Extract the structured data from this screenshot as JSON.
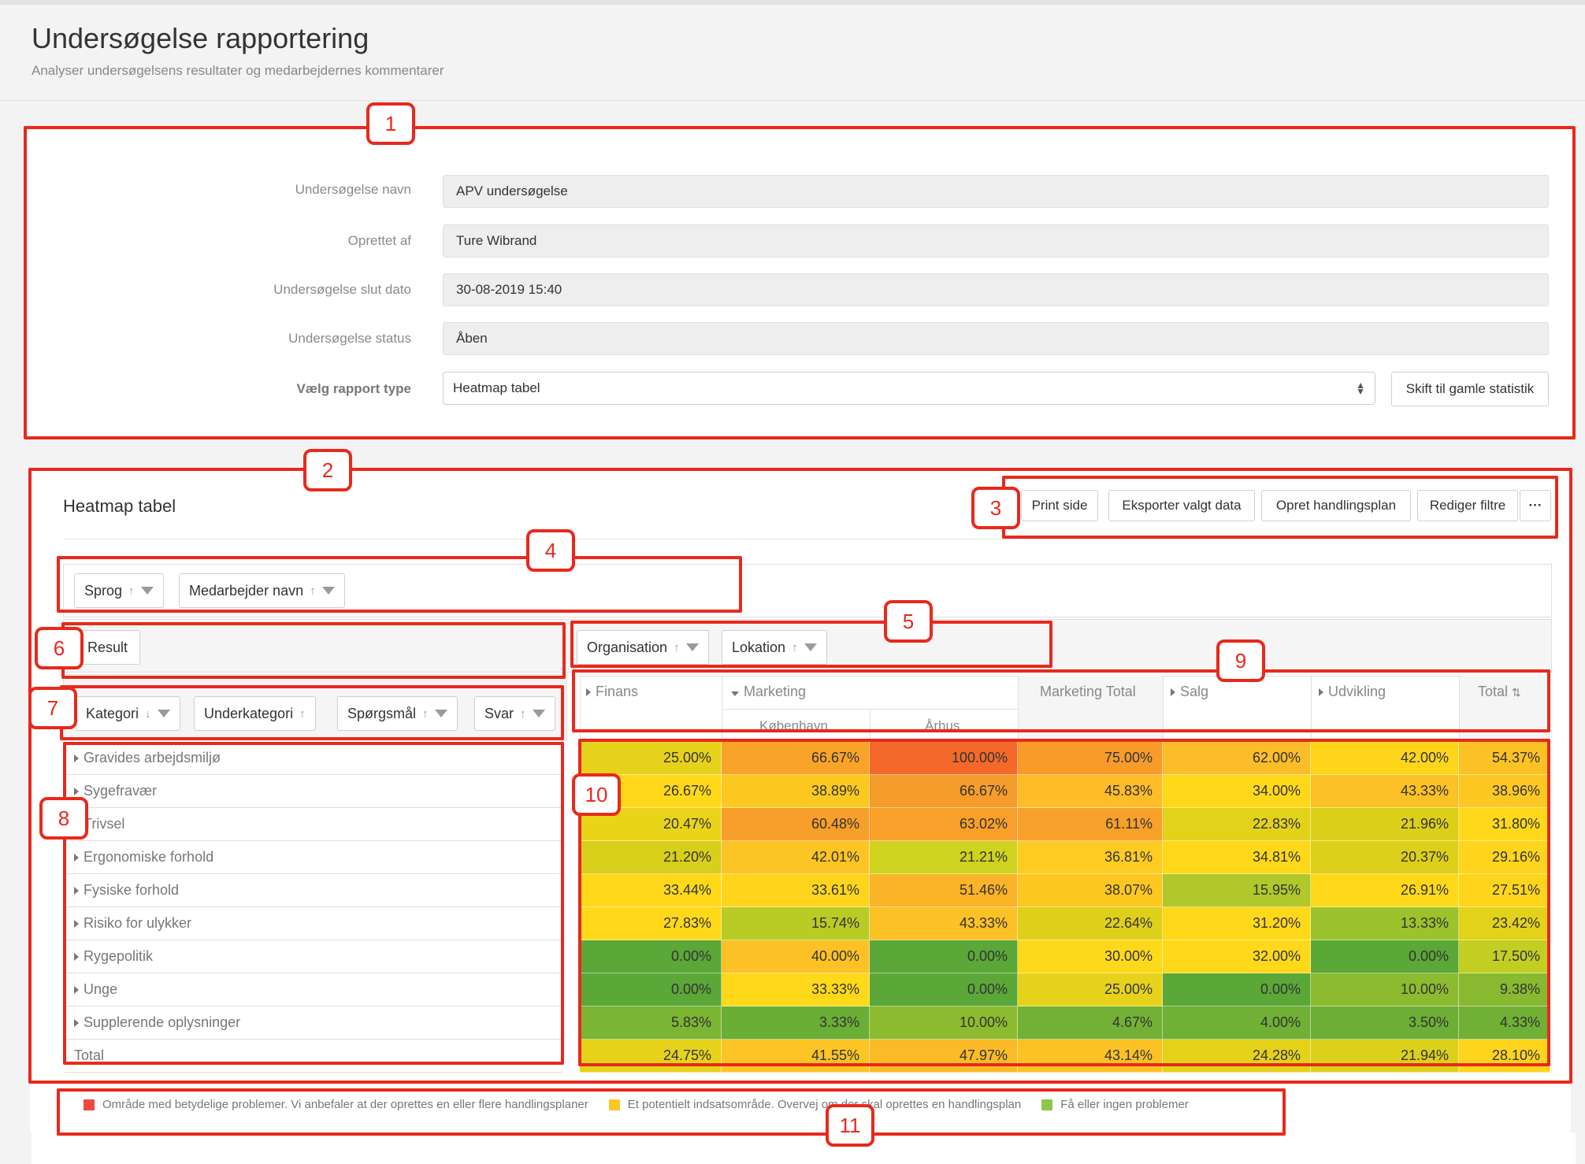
{
  "page": {
    "title": "Undersøgelse rapportering",
    "subtitle": "Analyser undersøgelsens resultater og medarbejdernes kommentarer"
  },
  "form": {
    "survey_name_label": "Undersøgelse navn",
    "survey_name_value": "APV undersøgelse",
    "created_by_label": "Oprettet af",
    "created_by_value": "Ture Wibrand",
    "end_date_label": "Undersøgelse slut dato",
    "end_date_value": "30-08-2019 15:40",
    "status_label": "Undersøgelse status",
    "status_value": "Åben",
    "report_type_label": "Vælg rapport type",
    "report_type_value": "Heatmap tabel",
    "switch_button": "Skift til gamle statistik"
  },
  "heatmap": {
    "title": "Heatmap tabel",
    "toolbar": {
      "print": "Print side",
      "export": "Eksporter valgt data",
      "action_plan": "Opret handlingsplan",
      "edit_filters": "Rediger filtre",
      "more": "···"
    },
    "filter_chips": [
      "Sprog",
      "Medarbejder navn"
    ],
    "value_chip": "Result",
    "column_chips": [
      "Organisation",
      "Lokation"
    ],
    "row_chips": [
      "Kategori",
      "Underkategori",
      "Spørgsmål",
      "Svar"
    ],
    "columns": {
      "finans": "Finans",
      "marketing": "Marketing",
      "kobenhavn": "København",
      "arhus": "Århus",
      "marketing_total": "Marketing Total",
      "salg": "Salg",
      "udvikling": "Udvikling",
      "total": "Total"
    },
    "rows": [
      {
        "label": "Gravides arbejdsmiljø",
        "values": [
          "25.00%",
          "66.67%",
          "100.00%",
          "75.00%",
          "62.00%",
          "42.00%",
          "54.37%"
        ],
        "colors": [
          "#e6d21a",
          "#f9a329",
          "#f4692a",
          "#f89b29",
          "#fbbd29",
          "#ffd51c",
          "#fcc125"
        ]
      },
      {
        "label": "Sygefravær",
        "values": [
          "26.67%",
          "38.89%",
          "66.67%",
          "45.83%",
          "34.00%",
          "43.33%",
          "38.96%"
        ],
        "colors": [
          "#ffd81a",
          "#fdc921",
          "#f59c2a",
          "#fdbc28",
          "#ffd81a",
          "#fcc125",
          "#fec823"
        ]
      },
      {
        "label": "Trivsel",
        "values": [
          "20.47%",
          "60.48%",
          "63.02%",
          "61.11%",
          "22.83%",
          "21.96%",
          "31.80%"
        ],
        "colors": [
          "#e9d41a",
          "#f79f2a",
          "#f99f2a",
          "#f8a12a",
          "#e2d21a",
          "#dccf1a",
          "#ffd81a"
        ]
      },
      {
        "label": "Ergonomiske forhold",
        "values": [
          "21.20%",
          "42.01%",
          "21.21%",
          "36.81%",
          "34.81%",
          "20.37%",
          "29.16%"
        ],
        "colors": [
          "#d8cf1a",
          "#fcc425",
          "#cfd21e",
          "#fdcb22",
          "#ffd81a",
          "#dcd01a",
          "#fed51c"
        ]
      },
      {
        "label": "Fysiske forhold",
        "values": [
          "33.44%",
          "33.61%",
          "51.46%",
          "38.07%",
          "15.95%",
          "26.91%",
          "27.51%"
        ],
        "colors": [
          "#ffd81a",
          "#fed51c",
          "#fbb428",
          "#fdc722",
          "#b0c82a",
          "#ffd81a",
          "#fed51c"
        ]
      },
      {
        "label": "Risiko for ulykker",
        "values": [
          "27.83%",
          "15.74%",
          "43.33%",
          "22.64%",
          "31.20%",
          "13.33%",
          "23.42%"
        ],
        "colors": [
          "#ffd81a",
          "#b9cb25",
          "#fcc125",
          "#ded01a",
          "#ffd81a",
          "#9cc22c",
          "#e2d21a"
        ]
      },
      {
        "label": "Rygepolitik",
        "values": [
          "0.00%",
          "40.00%",
          "0.00%",
          "30.00%",
          "32.00%",
          "0.00%",
          "17.50%"
        ],
        "colors": [
          "#5ba738",
          "#fcc225",
          "#5ba738",
          "#fed81a",
          "#ffd81a",
          "#5ba738",
          "#c2ce22"
        ]
      },
      {
        "label": "Unge",
        "values": [
          "0.00%",
          "33.33%",
          "0.00%",
          "25.00%",
          "0.00%",
          "10.00%",
          "9.38%"
        ],
        "colors": [
          "#5ba738",
          "#ffd81a",
          "#5ba738",
          "#e6d21a",
          "#5ba738",
          "#8dbb30",
          "#88b931"
        ]
      },
      {
        "label": "Supplerende oplysninger",
        "values": [
          "5.83%",
          "3.33%",
          "10.00%",
          "4.67%",
          "4.00%",
          "3.50%",
          "4.33%"
        ],
        "colors": [
          "#7bb534",
          "#6aae36",
          "#8dbb30",
          "#72b135",
          "#6fb035",
          "#6cae36",
          "#70b035"
        ]
      },
      {
        "label": "Total",
        "values": [
          "24.75%",
          "41.55%",
          "47.97%",
          "43.14%",
          "24.28%",
          "21.94%",
          "28.10%"
        ],
        "colors": [
          "#e6d21a",
          "#fcc425",
          "#fbbb28",
          "#fcc125",
          "#e4d21a",
          "#dcd01a",
          "#fed51c"
        ]
      }
    ],
    "legend": {
      "red": "Område med betydelige problemer. Vi anbefaler at der oprettes en eller flere handlingsplaner",
      "yellow": "Et potentielt indsatsområde. Overvej om der skal oprettes en handlingsplan",
      "green": "Få eller ingen problemer"
    }
  },
  "annotations": [
    "1",
    "2",
    "3",
    "4",
    "5",
    "6",
    "7",
    "8",
    "9",
    "10",
    "11"
  ],
  "colors": {
    "accent_red": "#e8291c",
    "legend_red": "#f04a3e",
    "legend_yellow": "#fcc527",
    "legend_green": "#8fc54a"
  }
}
